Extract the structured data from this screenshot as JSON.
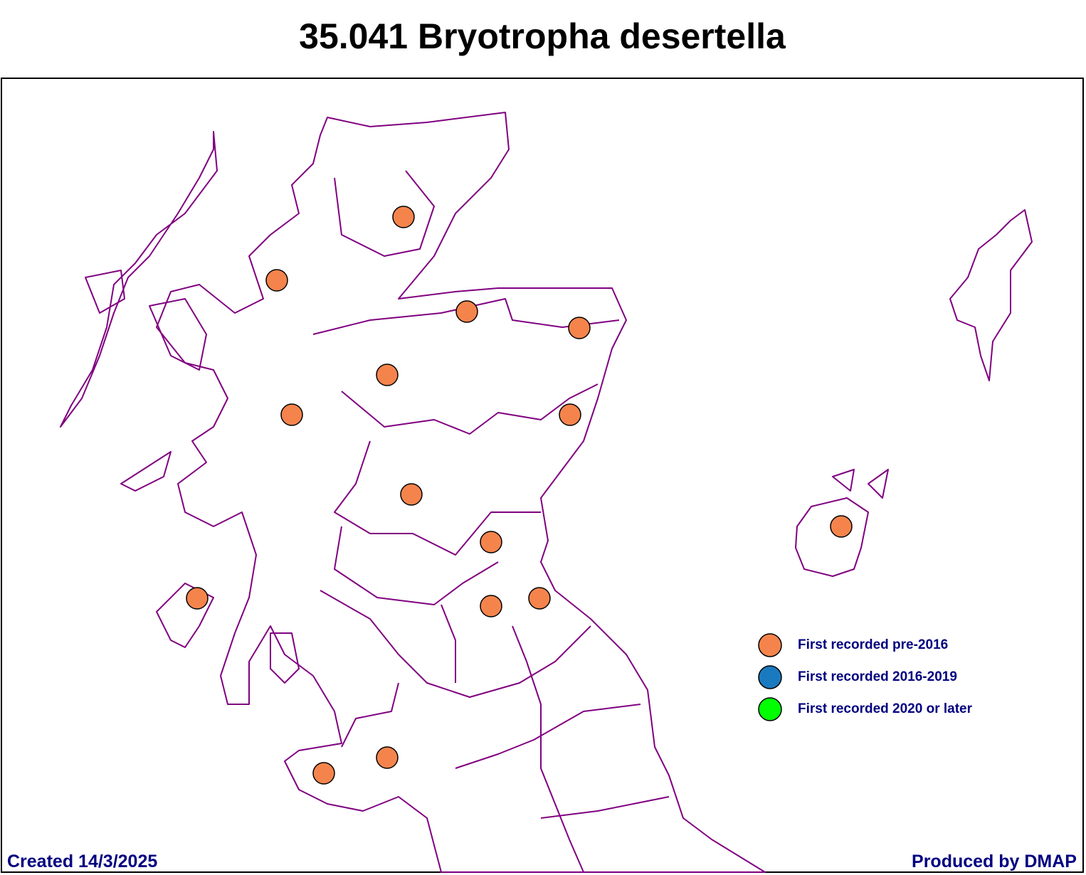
{
  "header": {
    "title": "35.041 Bryotropha desertella"
  },
  "legend": {
    "items": [
      {
        "label": "First recorded pre-2016",
        "color": "#f5844c"
      },
      {
        "label": "First recorded 2016-2019",
        "color": "#1a7abf"
      },
      {
        "label": "First recorded 2020 or later",
        "color": "#00ff00"
      }
    ]
  },
  "footer": {
    "created": "Created 14/3/2025",
    "producer": "Produced by DMAP"
  }
}
